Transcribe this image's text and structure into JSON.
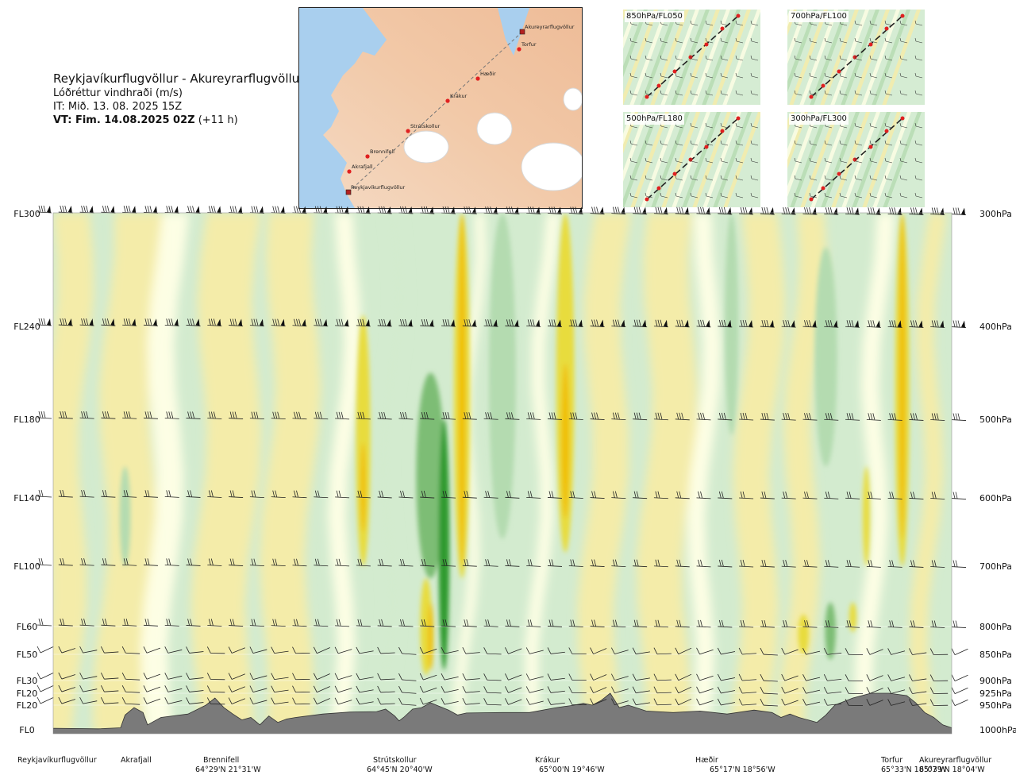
{
  "header": {
    "title": "Reykjavíkurflugvöllur - Akureyrarflugvöllur",
    "subtitle": "Lóðréttur vindhraði (m/s)",
    "it_line": "IT: Mið. 13. 08. 2025 15Z",
    "vt_bold": "VT: Fim. 14.08.2025 02Z",
    "vt_offset": " (+11 h)"
  },
  "route_map": {
    "points": [
      {
        "name": "Akureyrarflugvöllur",
        "kind": "airport"
      },
      {
        "name": "Torfur",
        "kind": "point"
      },
      {
        "name": "Hæðir",
        "kind": "point"
      },
      {
        "name": "Krákur",
        "kind": "point"
      },
      {
        "name": "Strútskollur",
        "kind": "point"
      },
      {
        "name": "Brennifell",
        "kind": "point"
      },
      {
        "name": "Akrafjall",
        "kind": "point"
      },
      {
        "name": "Reykjavíkurflugvöllur",
        "kind": "airport"
      }
    ]
  },
  "level_maps": [
    {
      "label": "850hPa/FL050"
    },
    {
      "label": "700hPa/FL100"
    },
    {
      "label": "500hPa/FL180"
    },
    {
      "label": "300hPa/FL300"
    }
  ],
  "colors": {
    "strong_down": "#f0c000",
    "mod_down": "#e8dc3c",
    "weak_down": "#f6eca8",
    "neutral": "#ffffe6",
    "weak_up": "#d3ebcf",
    "mod_up": "#b4dbb0",
    "strong_up": "#7dbd75",
    "very_strong_up": "#2e9a2e",
    "terrain": "#7a7a7a"
  },
  "chart_data": {
    "type": "cross-section",
    "title": "Lóðréttur vindhraði (m/s)",
    "x_unit": "km along route",
    "x_range": [
      0,
      100
    ],
    "levels_left": [
      {
        "label": "FL300",
        "pressure": 300
      },
      {
        "label": "FL240",
        "pressure": 400
      },
      {
        "label": "FL180",
        "pressure": 500
      },
      {
        "label": "FL140",
        "pressure": 600
      },
      {
        "label": "FL100",
        "pressure": 700
      },
      {
        "label": "FL60",
        "pressure": 800
      },
      {
        "label": "FL50",
        "pressure": 850
      },
      {
        "label": "FL30",
        "pressure": 900
      },
      {
        "label": "FL20",
        "pressure": 925
      },
      {
        "label": "FL20",
        "pressure": 950
      },
      {
        "label": "FL0",
        "pressure": 1000
      }
    ],
    "levels_right": [
      "300hPa",
      "400hPa",
      "500hPa",
      "600hPa",
      "700hPa",
      "800hPa",
      "850hPa",
      "900hPa",
      "925hPa",
      "950hPa",
      "1000hPa"
    ],
    "waypoints": [
      {
        "name": "Reykjavíkurflugvöllur",
        "coord": "",
        "pos": 0
      },
      {
        "name": "Akrafjall",
        "coord": "",
        "pos": 8
      },
      {
        "name": "Brennifell",
        "coord": "64°29'N 21°31'W",
        "pos": 18.5
      },
      {
        "name": "Strútskollur",
        "coord": "64°45'N 20°40'W",
        "pos": 38
      },
      {
        "name": "Krákur",
        "coord": "65°00'N 19°46'W",
        "pos": 57
      },
      {
        "name": "Hæðir",
        "coord": "65°17'N 18°56'W",
        "pos": 76
      },
      {
        "name": "Torfur",
        "coord": "65°33'N 18°07'W",
        "pos": 93.5
      },
      {
        "name": "Akureyrarflugvöllur",
        "coord": "65°39'N 18°04'W",
        "pos": 97
      }
    ],
    "terrain_pressure": [
      [
        0,
        997
      ],
      [
        5,
        998
      ],
      [
        7.5,
        996
      ],
      [
        8,
        970
      ],
      [
        9,
        955
      ],
      [
        10,
        965
      ],
      [
        10.5,
        990
      ],
      [
        11,
        985
      ],
      [
        12,
        975
      ],
      [
        15,
        968
      ],
      [
        17,
        950
      ],
      [
        18,
        935
      ],
      [
        19,
        955
      ],
      [
        20,
        968
      ],
      [
        21,
        980
      ],
      [
        22,
        975
      ],
      [
        23,
        990
      ],
      [
        24,
        972
      ],
      [
        25,
        985
      ],
      [
        26,
        978
      ],
      [
        27,
        975
      ],
      [
        30,
        968
      ],
      [
        33,
        964
      ],
      [
        36,
        963
      ],
      [
        37,
        958
      ],
      [
        38,
        972
      ],
      [
        38.5,
        982
      ],
      [
        39,
        975
      ],
      [
        40,
        958
      ],
      [
        41,
        955
      ],
      [
        42,
        945
      ],
      [
        44,
        960
      ],
      [
        45,
        970
      ],
      [
        46,
        966
      ],
      [
        50,
        965
      ],
      [
        53,
        965
      ],
      [
        56,
        955
      ],
      [
        58,
        950
      ],
      [
        59,
        946
      ],
      [
        60,
        950
      ],
      [
        61,
        940
      ],
      [
        62,
        925
      ],
      [
        63,
        955
      ],
      [
        64,
        950
      ],
      [
        66,
        962
      ],
      [
        69,
        965
      ],
      [
        72,
        962
      ],
      [
        75,
        968
      ],
      [
        78,
        960
      ],
      [
        80,
        965
      ],
      [
        81,
        975
      ],
      [
        82,
        968
      ],
      [
        83,
        975
      ],
      [
        85,
        985
      ],
      [
        86,
        970
      ],
      [
        87,
        950
      ],
      [
        89,
        935
      ],
      [
        91,
        925
      ],
      [
        93,
        925
      ],
      [
        95,
        930
      ],
      [
        96,
        945
      ],
      [
        97,
        965
      ],
      [
        98,
        975
      ],
      [
        99,
        990
      ],
      [
        100,
        996
      ]
    ],
    "w_bands": [
      {
        "class": "mod_up",
        "x": 8,
        "w": 1.2,
        "p_top": 560,
        "p_bot": 700
      },
      {
        "class": "mod_down",
        "x": 34.5,
        "w": 1.6,
        "p_top": 390,
        "p_bot": 700
      },
      {
        "class": "strong_down",
        "x": 34.5,
        "w": 0.6,
        "p_top": 530,
        "p_bot": 650
      },
      {
        "class": "strong_up",
        "x": 42,
        "w": 3.2,
        "p_top": 450,
        "p_bot": 720
      },
      {
        "class": "very_strong_up",
        "x": 43.5,
        "w": 1.2,
        "p_top": 500,
        "p_bot": 880
      },
      {
        "class": "mod_down",
        "x": 45.5,
        "w": 1.8,
        "p_top": 270,
        "p_bot": 720
      },
      {
        "class": "strong_down",
        "x": 45.5,
        "w": 0.8,
        "p_top": 280,
        "p_bot": 700
      },
      {
        "class": "mod_up",
        "x": 50,
        "w": 3.0,
        "p_top": 270,
        "p_bot": 660
      },
      {
        "class": "mod_down",
        "x": 57,
        "w": 2.0,
        "p_top": 270,
        "p_bot": 680
      },
      {
        "class": "strong_down",
        "x": 57,
        "w": 0.9,
        "p_top": 440,
        "p_bot": 630
      },
      {
        "class": "mod_up",
        "x": 75.5,
        "w": 1.5,
        "p_top": 270,
        "p_bot": 520
      },
      {
        "class": "mod_up",
        "x": 86,
        "w": 2.5,
        "p_top": 330,
        "p_bot": 560
      },
      {
        "class": "mod_down",
        "x": 94.5,
        "w": 1.6,
        "p_top": 270,
        "p_bot": 700
      },
      {
        "class": "strong_down",
        "x": 94.5,
        "w": 0.7,
        "p_top": 300,
        "p_bot": 660
      },
      {
        "class": "mod_down",
        "x": 90.5,
        "w": 0.8,
        "p_top": 560,
        "p_bot": 700
      },
      {
        "class": "mod_down",
        "x": 41.5,
        "w": 1.3,
        "p_top": 720,
        "p_bot": 890
      },
      {
        "class": "strong_down",
        "x": 42,
        "w": 0.6,
        "p_top": 760,
        "p_bot": 880
      },
      {
        "class": "strong_up",
        "x": 86.5,
        "w": 1.2,
        "p_top": 760,
        "p_bot": 860
      },
      {
        "class": "mod_down",
        "x": 83.5,
        "w": 1.2,
        "p_top": 780,
        "p_bot": 850
      },
      {
        "class": "mod_down",
        "x": 89,
        "w": 0.8,
        "p_top": 760,
        "p_bot": 810
      }
    ]
  },
  "barb_rows": [
    300,
    400,
    500,
    600,
    700,
    800,
    850,
    900,
    925,
    950
  ]
}
